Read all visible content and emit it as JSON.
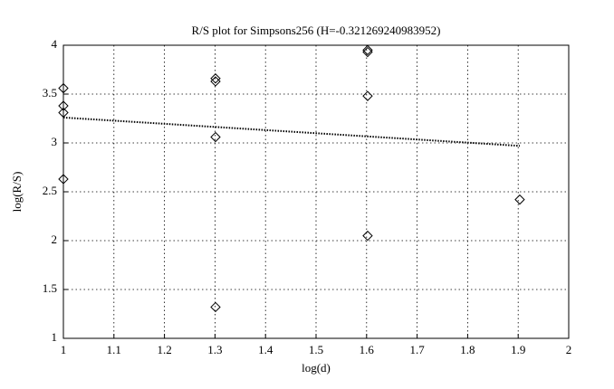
{
  "chart_data": {
    "type": "scatter",
    "title": "R/S plot for Simpsons256 (H=-0.321269240983952)",
    "x_label": "log(d)",
    "y_label": "log(R/S)",
    "series": [
      {
        "type": "scatter",
        "marker": "diamond",
        "color": "#000000",
        "x": [
          1,
          1,
          1,
          1,
          1.30103,
          1.30103,
          1.30103,
          1.30103,
          1.60206,
          1.60206,
          1.60206,
          1.60206,
          1.90309
        ],
        "values": [
          3.56,
          3.38,
          3.31,
          2.63,
          3.66,
          3.63,
          3.06,
          1.32,
          3.95,
          3.93,
          3.48,
          2.05,
          2.42
        ]
      },
      {
        "type": "line",
        "line_style": "dotted",
        "color": "#000000",
        "x": [
          1,
          1.90309
        ],
        "values": [
          3.26,
          2.97
        ]
      }
    ],
    "xlim": [
      1,
      2
    ],
    "xticks": [
      1,
      1.1,
      1.2,
      1.3,
      1.4,
      1.5,
      1.6,
      1.7,
      1.8,
      1.9,
      2
    ],
    "ylim": [
      1,
      4
    ],
    "yticks": [
      1,
      1.5,
      2,
      2.5,
      3,
      3.5,
      4
    ],
    "grid": true
  }
}
